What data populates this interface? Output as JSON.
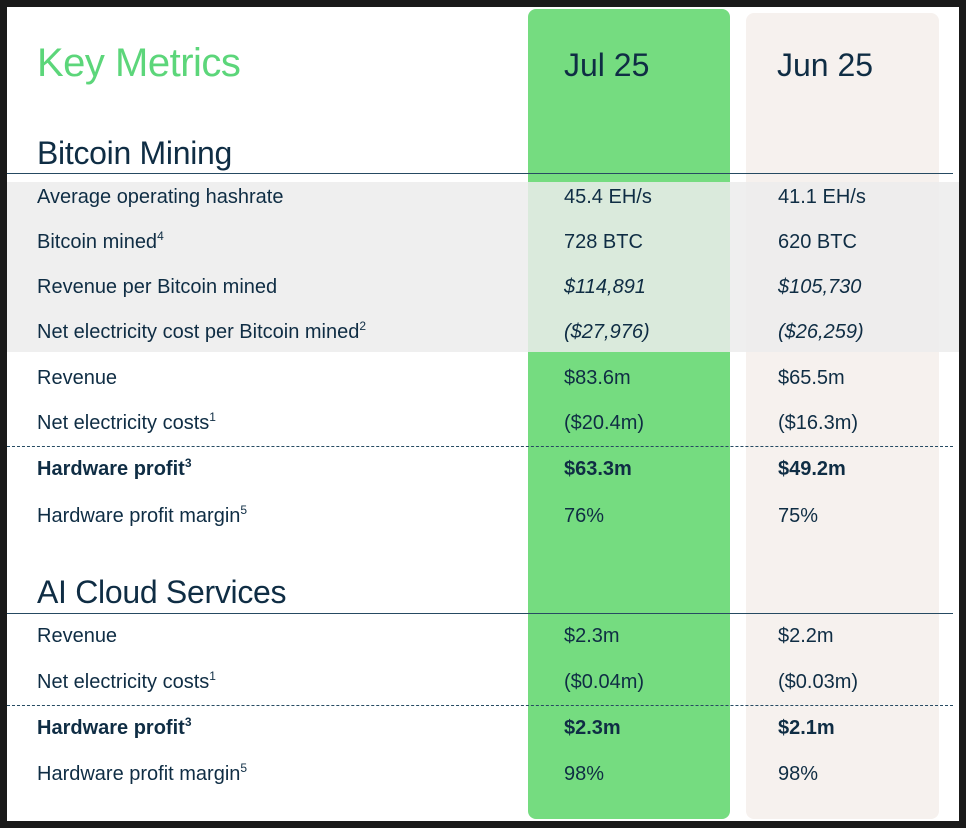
{
  "title": "Key Metrics",
  "columns": [
    "Jul 25",
    "Jun 25"
  ],
  "sections": [
    {
      "title": "Bitcoin Mining",
      "rows": [
        {
          "label": "Average operating hashrate",
          "sup": "",
          "jul": "45.4 EH/s",
          "jun": "41.1 EH/s"
        },
        {
          "label": "Bitcoin mined",
          "sup": "4",
          "jul": "728 BTC",
          "jun": "620 BTC"
        },
        {
          "label": "Revenue per Bitcoin mined",
          "sup": "",
          "jul": "$114,891",
          "jun": "$105,730"
        },
        {
          "label": "Net electricity cost per Bitcoin mined",
          "sup": "2",
          "jul": "($27,976)",
          "jun": "($26,259)"
        },
        {
          "label": "Revenue",
          "sup": "",
          "jul": "$83.6m",
          "jun": "$65.5m"
        },
        {
          "label": "Net electricity costs",
          "sup": "1",
          "jul": "($20.4m)",
          "jun": "($16.3m)"
        },
        {
          "label": "Hardware profit",
          "sup": "3",
          "jul": "$63.3m",
          "jun": "$49.2m"
        },
        {
          "label": "Hardware profit margin",
          "sup": "5",
          "jul": "76%",
          "jun": "75%"
        }
      ]
    },
    {
      "title": "AI Cloud Services",
      "rows": [
        {
          "label": "Revenue",
          "sup": "",
          "jul": "$2.3m",
          "jun": "$2.2m"
        },
        {
          "label": "Net electricity costs",
          "sup": "1",
          "jul": "($0.04m)",
          "jun": "($0.03m)"
        },
        {
          "label": "Hardware profit",
          "sup": "3",
          "jul": "$2.3m",
          "jun": "$2.1m"
        },
        {
          "label": "Hardware profit margin",
          "sup": "5",
          "jul": "98%",
          "jun": "98%"
        }
      ]
    }
  ],
  "colors": {
    "highlight_column": "#75dc80",
    "compare_column": "#f6f1ee",
    "title": "#5cd67a",
    "text": "#0f2d44"
  }
}
